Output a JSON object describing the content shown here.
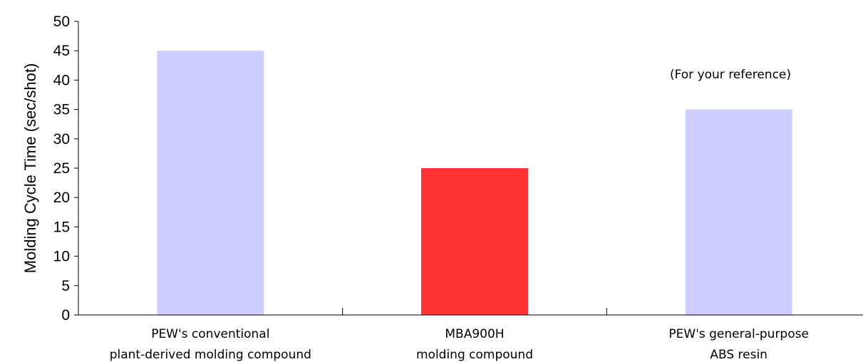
{
  "chart_data": {
    "type": "bar",
    "title": "",
    "xlabel": "",
    "ylabel": "Molding Cycle Time (sec/shot)",
    "ylim": [
      0,
      50
    ],
    "yticks": [
      0,
      5,
      10,
      15,
      20,
      25,
      30,
      35,
      40,
      45,
      50
    ],
    "categories": [
      [
        "PEW's conventional",
        "plant-derived molding compound"
      ],
      [
        "MBA900H",
        "molding compound"
      ],
      [
        "PEW's general-purpose",
        "ABS resin"
      ]
    ],
    "values": [
      45,
      25,
      35
    ],
    "colors": [
      "#ccccff",
      "#ff3333",
      "#ccccff"
    ],
    "annotation": "(For your reference)",
    "grid": false,
    "legend": "none"
  }
}
